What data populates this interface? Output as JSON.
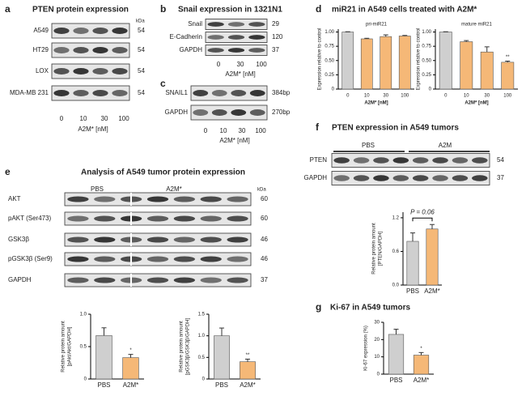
{
  "figure": {
    "panels": [
      {
        "letter": "a",
        "title": "PTEN protein expression",
        "size_unit": "kDa",
        "rows": [
          {
            "name": "A549",
            "size": 54
          },
          {
            "name": "HT29",
            "size": 54
          },
          {
            "name": "LOX",
            "size": 54
          },
          {
            "name": "MDA-MB 231",
            "size": 54
          }
        ],
        "lanes": [
          0,
          10,
          30,
          100
        ],
        "x_label": "A2M* [nM]"
      },
      {
        "letter": "b",
        "title": "Snail expression in 1321N1",
        "rows": [
          {
            "name": "Snail",
            "size": 29
          },
          {
            "name": "E-Cadherin",
            "size": 120
          },
          {
            "name": "GAPDH",
            "size": 37
          }
        ],
        "lanes": [
          0,
          30,
          100
        ],
        "x_label": "A2M* [nM]"
      },
      {
        "letter": "c",
        "rows": [
          {
            "name": "SNAIL1",
            "size": "384bp"
          },
          {
            "name": "GAPDH",
            "size": "270bp"
          }
        ],
        "lanes": [
          0,
          10,
          30,
          100
        ],
        "x_label": "A2M* [nM]"
      },
      {
        "letter": "d",
        "title": "miR21 in A549 cells treated with A2M*"
      },
      {
        "letter": "e",
        "title": "Analysis of A549 tumor protein expression",
        "groups": [
          "PBS",
          "A2M*"
        ],
        "size_unit": "kDa",
        "rows": [
          {
            "name": "AKT",
            "size": 60
          },
          {
            "name": "pAKT (Ser473)",
            "size": 60
          },
          {
            "name": "GSK3β",
            "size": 46
          },
          {
            "name": "pGSK3β (Ser9)",
            "size": 46
          },
          {
            "name": "GAPDH",
            "size": 37
          }
        ]
      },
      {
        "letter": "f",
        "title": "PTEN expression in A549 tumors",
        "groups": [
          "PBS",
          "A2M"
        ],
        "rows": [
          {
            "name": "PTEN",
            "size": 54
          },
          {
            "name": "GAPDH",
            "size": 37
          }
        ]
      },
      {
        "letter": "g",
        "title": "Ki-67 in A549 tumors"
      }
    ]
  },
  "chart_data": [
    {
      "type": "bar",
      "title": "pri-miR21",
      "ylabel": [
        "Expression relative to control"
      ],
      "x_label": "A2M* [nM]",
      "categories": [
        0,
        10,
        30,
        100
      ],
      "values": [
        1.0,
        0.88,
        0.92,
        0.93
      ],
      "errors": [
        0.005,
        0.01,
        0.03,
        0.01
      ],
      "colors": [
        "#cfcfcf",
        "#f5b877",
        "#f5b877",
        "#f5b877"
      ],
      "ylim": [
        0,
        1.05
      ],
      "yticks": [
        0,
        0.25,
        {
          "value": 0.5,
          "label": "0.50"
        },
        0.75,
        {
          "value": 1,
          "label": "1.00"
        }
      ]
    },
    {
      "type": "bar",
      "title": "mature miR21",
      "ylabel": [
        "Expression relative to control"
      ],
      "x_label": "A2M* [nM]",
      "categories": [
        0,
        10,
        30,
        100
      ],
      "values": [
        1.0,
        0.83,
        0.65,
        0.47
      ],
      "errors": [
        0.005,
        0.02,
        0.09,
        0.02
      ],
      "markers": [
        null,
        null,
        null,
        "**"
      ],
      "colors": [
        "#cfcfcf",
        "#f5b877",
        "#f5b877",
        "#f5b877"
      ],
      "ylim": [
        0,
        1.05
      ],
      "yticks": [
        0,
        0.25,
        {
          "value": 0.5,
          "label": "0.50"
        },
        0.75,
        {
          "value": 1,
          "label": "1.00"
        }
      ]
    },
    {
      "type": "bar",
      "ylabel": [
        "Relative protein amount",
        "[pAkt/Akt/GAPDH]"
      ],
      "categories": [
        "PBS",
        "A2M*"
      ],
      "values": [
        0.67,
        0.33
      ],
      "errors": [
        0.12,
        0.05
      ],
      "markers": [
        null,
        "*"
      ],
      "colors": [
        "#cfcfcf",
        "#f5b877"
      ],
      "ylim": [
        0,
        1
      ],
      "yticks": [
        0,
        0.5,
        {
          "value": 1,
          "label": "1.0"
        }
      ]
    },
    {
      "type": "bar",
      "ylabel": [
        "Relative protein amount",
        "[pGSK3β/GSK3β/GAPDH]"
      ],
      "categories": [
        "PBS",
        "A2M*"
      ],
      "values": [
        1.0,
        0.4
      ],
      "errors": [
        0.18,
        0.06
      ],
      "markers": [
        null,
        "**"
      ],
      "colors": [
        "#cfcfcf",
        "#f5b877"
      ],
      "ylim": [
        0,
        1.5
      ],
      "yticks": [
        0,
        0.5,
        {
          "value": 1,
          "label": "1.0"
        },
        1.5
      ]
    },
    {
      "type": "bar",
      "ylabel": [
        "Relative protein amount",
        "[PTEN/GAPDH]"
      ],
      "bracket_label": "P = 0.06",
      "categories": [
        "PBS",
        "A2M*"
      ],
      "values": [
        0.78,
        1.0
      ],
      "errors": [
        0.15,
        0.08
      ],
      "colors": [
        "#cfcfcf",
        "#f5b877"
      ],
      "ylim": [
        0,
        1.3
      ],
      "yticks": [
        {
          "value": 0,
          "label": "0.0"
        },
        0.6,
        1.2
      ]
    },
    {
      "type": "bar",
      "ylabel": [
        "Ki-67 expression (%)"
      ],
      "categories": [
        "PBS",
        "A2M*"
      ],
      "values": [
        23,
        11
      ],
      "errors": [
        3,
        1.5
      ],
      "markers": [
        null,
        "*"
      ],
      "colors": [
        "#cfcfcf",
        "#f5b877"
      ],
      "ylim": [
        0,
        30
      ],
      "yticks": [
        0,
        10,
        20,
        30
      ]
    }
  ]
}
